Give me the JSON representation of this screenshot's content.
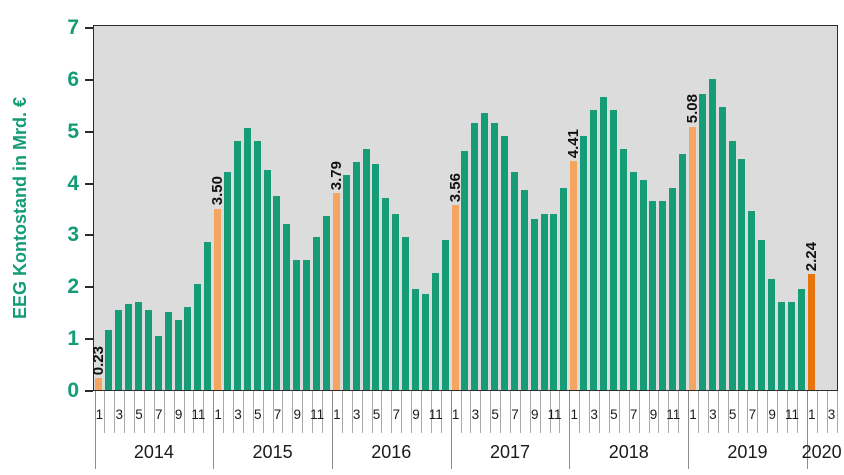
{
  "chart_data": {
    "type": "bar",
    "title": "",
    "xlabel": "",
    "ylabel": "EEG Kontostand in Mrd. €",
    "ylim": [
      0,
      7
    ],
    "yticks": [
      "0",
      "1",
      "2",
      "3",
      "4",
      "5",
      "6",
      "7"
    ],
    "grid": false,
    "legend": "none",
    "month_labels": [
      "1",
      "3",
      "5",
      "7",
      "9",
      "11"
    ],
    "years": [
      {
        "year": "2014",
        "jan_label": "0.23",
        "axis_slots": 12,
        "values": [
          0.23,
          1.15,
          1.55,
          1.65,
          1.7,
          1.55,
          1.05,
          1.5,
          1.35,
          1.6,
          2.05,
          2.85
        ]
      },
      {
        "year": "2015",
        "jan_label": "3.50",
        "axis_slots": 12,
        "values": [
          3.5,
          4.2,
          4.8,
          5.05,
          4.8,
          4.25,
          3.75,
          3.2,
          2.5,
          2.5,
          2.95,
          3.35
        ]
      },
      {
        "year": "2016",
        "jan_label": "3.79",
        "axis_slots": 12,
        "values": [
          3.79,
          4.15,
          4.4,
          4.65,
          4.35,
          3.7,
          3.4,
          2.95,
          1.95,
          1.85,
          2.25,
          2.9
        ]
      },
      {
        "year": "2017",
        "jan_label": "3.56",
        "axis_slots": 12,
        "values": [
          3.56,
          4.6,
          5.15,
          5.35,
          5.15,
          4.9,
          4.2,
          3.85,
          3.3,
          3.4,
          3.4,
          3.9
        ]
      },
      {
        "year": "2018",
        "jan_label": "4.41",
        "axis_slots": 12,
        "values": [
          4.41,
          4.9,
          5.4,
          5.65,
          5.4,
          4.65,
          4.2,
          4.05,
          3.65,
          3.65,
          3.9,
          4.55
        ]
      },
      {
        "year": "2019",
        "jan_label": "5.08",
        "axis_slots": 12,
        "values": [
          5.08,
          5.7,
          6.0,
          5.45,
          4.8,
          4.45,
          3.45,
          2.9,
          2.15,
          1.7,
          1.7,
          1.95
        ]
      },
      {
        "year": "2020",
        "jan_label": "2.24",
        "axis_slots": 3,
        "values": [
          2.24
        ]
      }
    ],
    "colors": {
      "bar_green": "#169c76",
      "bar_january": "#f4a55f",
      "bar_january_2020": "#e87410",
      "axis_text_green": "#149c76",
      "plot_background": "#dcdcdc",
      "value_label_text": "#111111"
    }
  }
}
